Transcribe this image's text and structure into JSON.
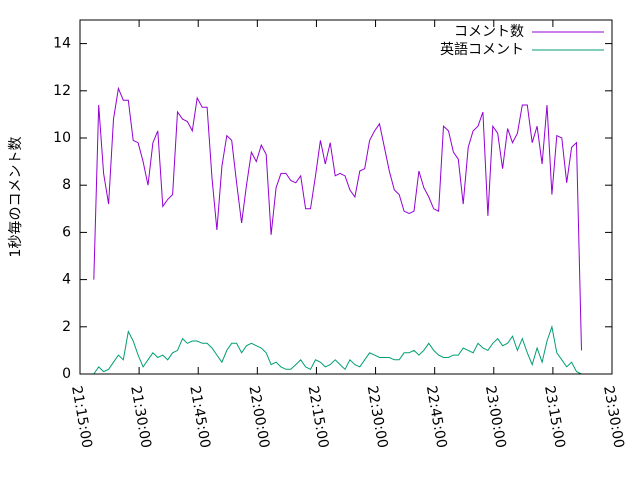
{
  "chart_data": {
    "type": "line",
    "ylabel": "1秒毎のコメント数",
    "x": [
      "21:18:30",
      "21:19:45",
      "21:21:00",
      "21:22:15",
      "21:23:30",
      "21:24:45",
      "21:26:00",
      "21:27:15",
      "21:28:30",
      "21:29:45",
      "21:31:00",
      "21:32:15",
      "21:33:30",
      "21:34:45",
      "21:36:00",
      "21:37:15",
      "21:38:30",
      "21:39:45",
      "21:41:00",
      "21:42:15",
      "21:43:30",
      "21:44:45",
      "21:46:00",
      "21:47:15",
      "21:48:30",
      "21:49:45",
      "21:51:00",
      "21:52:15",
      "21:53:30",
      "21:54:45",
      "21:56:00",
      "21:57:15",
      "21:58:30",
      "21:59:45",
      "22:01:00",
      "22:02:15",
      "22:03:30",
      "22:04:45",
      "22:06:00",
      "22:07:15",
      "22:08:30",
      "22:09:45",
      "22:11:00",
      "22:12:15",
      "22:13:30",
      "22:14:45",
      "22:16:00",
      "22:17:15",
      "22:18:30",
      "22:19:45",
      "22:21:00",
      "22:22:15",
      "22:23:30",
      "22:24:45",
      "22:26:00",
      "22:27:15",
      "22:28:30",
      "22:29:45",
      "22:31:00",
      "22:32:15",
      "22:33:30",
      "22:34:45",
      "22:36:00",
      "22:37:15",
      "22:38:30",
      "22:39:45",
      "22:41:00",
      "22:42:15",
      "22:43:30",
      "22:44:45",
      "22:46:00",
      "22:47:15",
      "22:48:30",
      "22:49:45",
      "22:51:00",
      "22:52:15",
      "22:53:30",
      "22:54:45",
      "22:56:00",
      "22:57:15",
      "22:58:30",
      "22:59:45",
      "23:01:00",
      "23:02:15",
      "23:03:30",
      "23:04:45",
      "23:06:00",
      "23:07:15",
      "23:08:30",
      "23:09:45",
      "23:11:00",
      "23:12:15",
      "23:13:30",
      "23:14:45",
      "23:16:00",
      "23:17:15",
      "23:18:30",
      "23:19:45",
      "23:21:00",
      "23:22:15"
    ],
    "series": [
      {
        "name": "コメント数",
        "color": "#9400d3",
        "values": [
          4.0,
          11.4,
          8.5,
          7.2,
          10.8,
          12.1,
          11.6,
          11.6,
          9.9,
          9.8,
          9.0,
          8.0,
          9.8,
          10.3,
          7.1,
          7.4,
          7.6,
          11.1,
          10.8,
          10.7,
          10.3,
          11.7,
          11.3,
          11.3,
          8.3,
          6.1,
          8.8,
          10.1,
          9.9,
          8.1,
          6.4,
          8.0,
          9.4,
          9.0,
          9.7,
          9.3,
          5.9,
          7.9,
          8.5,
          8.5,
          8.2,
          8.1,
          8.4,
          7.0,
          7.0,
          8.4,
          9.9,
          8.9,
          9.8,
          8.4,
          8.5,
          8.4,
          7.8,
          7.5,
          8.6,
          8.7,
          9.9,
          10.3,
          10.6,
          9.6,
          8.6,
          7.8,
          7.6,
          6.9,
          6.8,
          6.9,
          8.6,
          7.9,
          7.5,
          7.0,
          6.9,
          10.5,
          10.3,
          9.4,
          9.1,
          7.2,
          9.6,
          10.3,
          10.5,
          11.1,
          6.7,
          10.5,
          10.2,
          8.7,
          10.4,
          9.8,
          10.2,
          11.4,
          11.4,
          9.8,
          10.5,
          8.9,
          11.4,
          7.6,
          10.1,
          10.0,
          8.1,
          9.6,
          9.8,
          1.0
        ]
      },
      {
        "name": "英語コメント",
        "color": "#009e73",
        "values": [
          0.0,
          0.3,
          0.1,
          0.2,
          0.5,
          0.8,
          0.6,
          1.8,
          1.4,
          0.8,
          0.3,
          0.6,
          0.9,
          0.7,
          0.8,
          0.6,
          0.9,
          1.0,
          1.5,
          1.3,
          1.4,
          1.4,
          1.3,
          1.3,
          1.1,
          0.8,
          0.5,
          1.0,
          1.3,
          1.3,
          0.9,
          1.2,
          1.3,
          1.2,
          1.1,
          0.9,
          0.4,
          0.5,
          0.3,
          0.2,
          0.2,
          0.4,
          0.6,
          0.3,
          0.2,
          0.6,
          0.5,
          0.3,
          0.4,
          0.6,
          0.4,
          0.2,
          0.6,
          0.4,
          0.3,
          0.6,
          0.9,
          0.8,
          0.7,
          0.7,
          0.7,
          0.6,
          0.6,
          0.9,
          0.9,
          1.0,
          0.8,
          1.0,
          1.3,
          1.0,
          0.8,
          0.7,
          0.7,
          0.8,
          0.8,
          1.1,
          1.0,
          0.9,
          1.3,
          1.1,
          1.0,
          1.3,
          1.5,
          1.2,
          1.3,
          1.6,
          1.0,
          1.5,
          0.9,
          0.4,
          1.1,
          0.5,
          1.4,
          2.0,
          0.9,
          0.6,
          0.3,
          0.5,
          0.1,
          0.0
        ]
      }
    ],
    "xlim": [
      "21:15:00",
      "23:30:00"
    ],
    "xticks": [
      "21:15:00",
      "21:30:00",
      "21:45:00",
      "22:00:00",
      "22:15:00",
      "22:30:00",
      "22:45:00",
      "23:00:00",
      "23:15:00",
      "23:30:00"
    ],
    "ylim": [
      0,
      15
    ],
    "yticks": [
      0,
      2,
      4,
      6,
      8,
      10,
      12,
      14
    ],
    "legend": "upper right"
  }
}
